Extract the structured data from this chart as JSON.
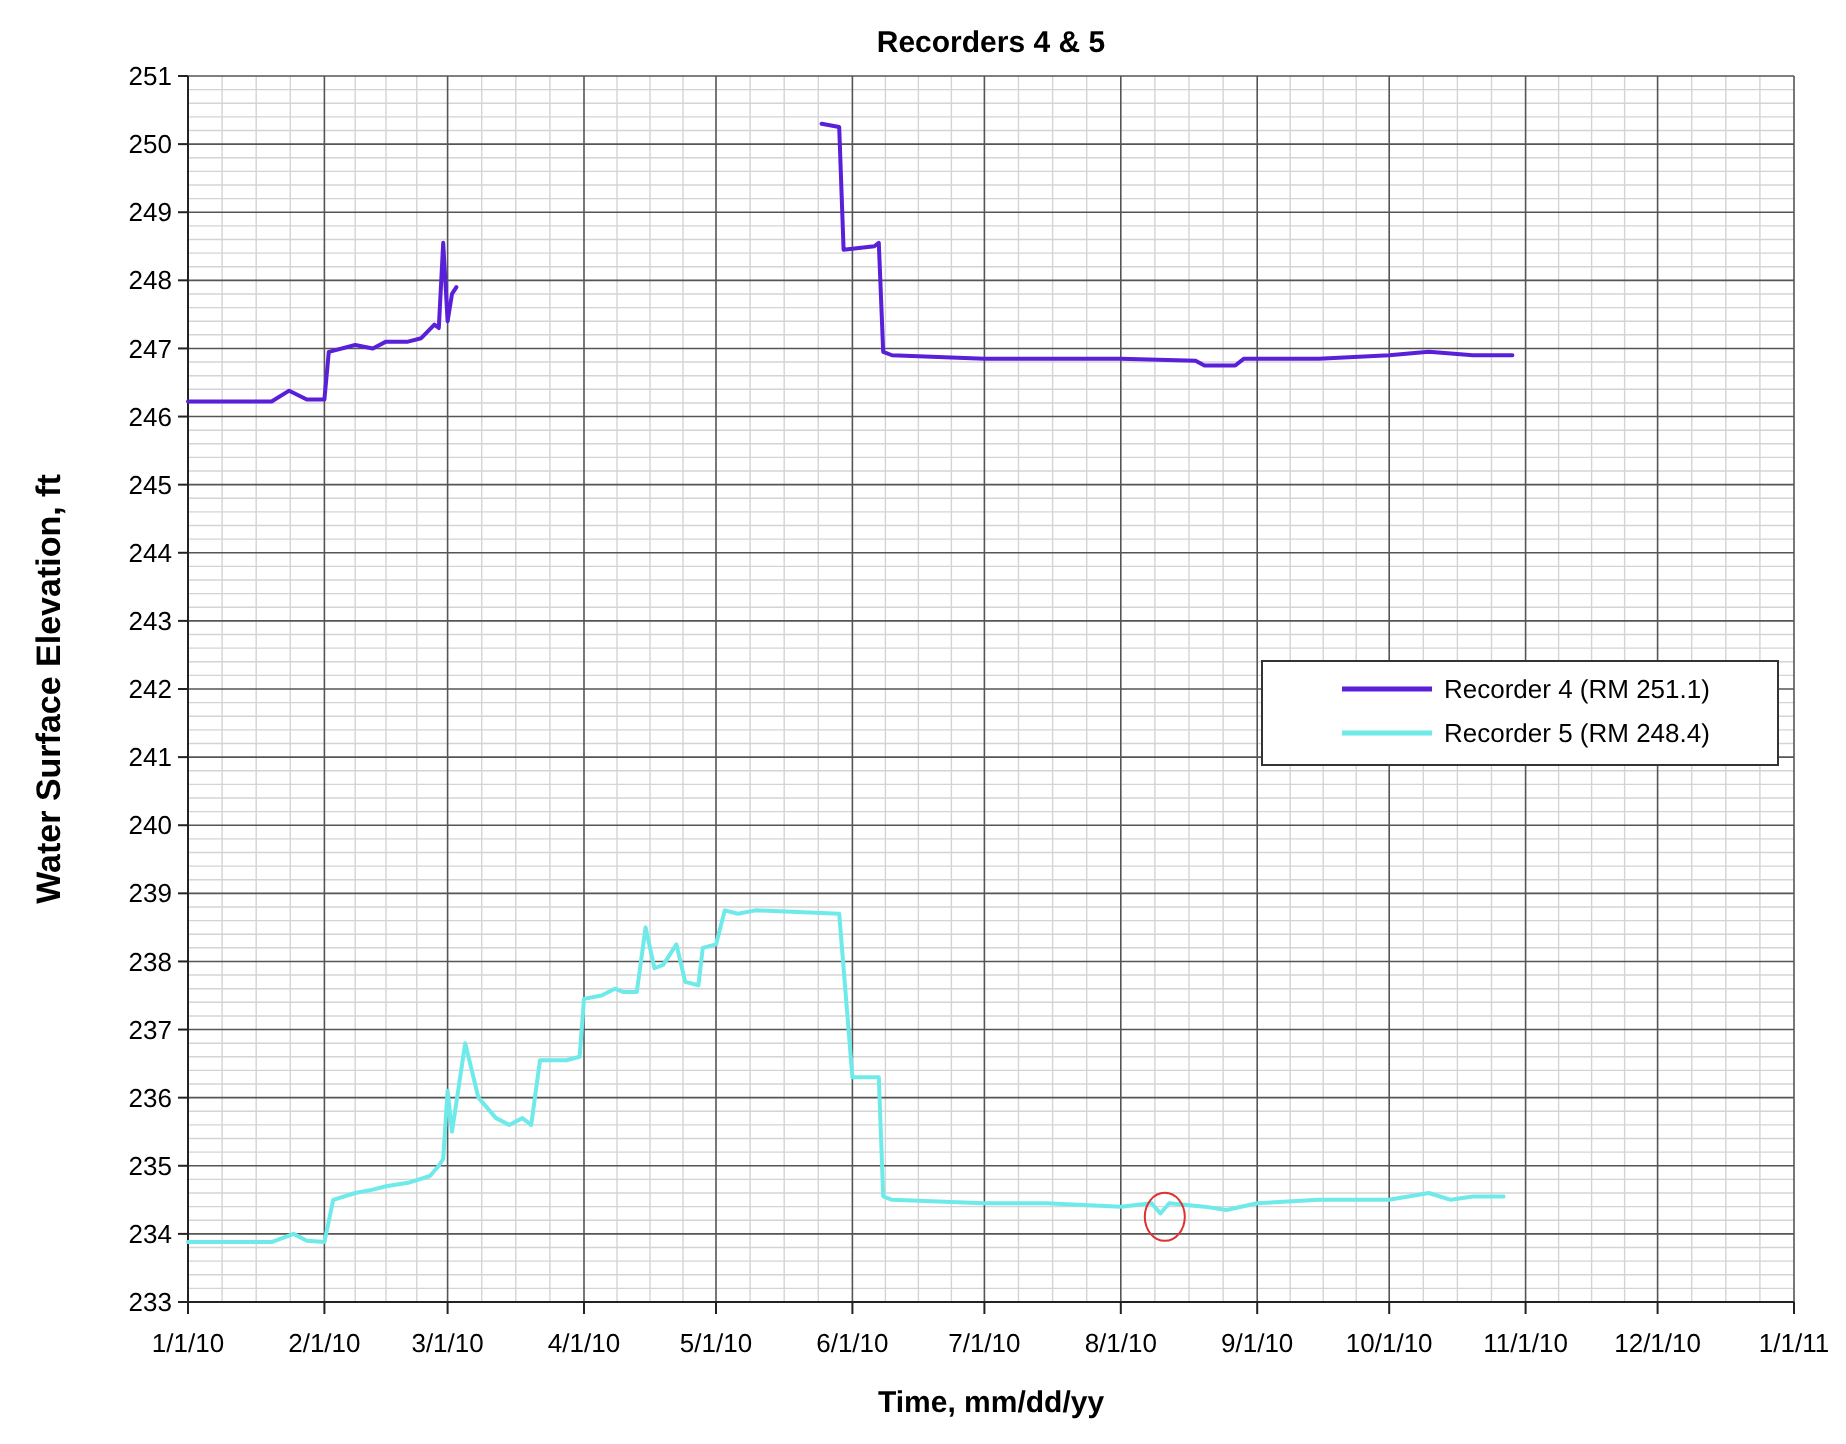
{
  "chart_data": {
    "type": "line",
    "title": "Recorders 4 & 5",
    "xlabel": "Time, mm/dd/yy",
    "ylabel": "Water Surface Elevation, ft",
    "xlim": [
      "2010-01-01",
      "2011-01-01"
    ],
    "xticks": [
      {
        "value": "2010-01-01",
        "label": "1/1/10"
      },
      {
        "value": "2010-02-01",
        "label": "2/1/10"
      },
      {
        "value": "2010-03-01",
        "label": "3/1/10"
      },
      {
        "value": "2010-04-01",
        "label": "4/1/10"
      },
      {
        "value": "2010-05-01",
        "label": "5/1/10"
      },
      {
        "value": "2010-06-01",
        "label": "6/1/10"
      },
      {
        "value": "2010-07-01",
        "label": "7/1/10"
      },
      {
        "value": "2010-08-01",
        "label": "8/1/10"
      },
      {
        "value": "2010-09-01",
        "label": "9/1/10"
      },
      {
        "value": "2010-10-01",
        "label": "10/1/10"
      },
      {
        "value": "2010-11-01",
        "label": "11/1/10"
      },
      {
        "value": "2010-12-01",
        "label": "12/1/10"
      },
      {
        "value": "2011-01-01",
        "label": "1/1/11"
      }
    ],
    "ylim": [
      233,
      251
    ],
    "yticks": [
      233,
      234,
      235,
      236,
      237,
      238,
      239,
      240,
      241,
      242,
      243,
      244,
      245,
      246,
      247,
      248,
      249,
      250,
      251
    ],
    "grid": true,
    "legend": "right",
    "line_style": "solid",
    "marker": "none",
    "series": [
      {
        "name": "Recorder 4 (RM 251.1)",
        "color": "#5a1fd8",
        "x": [
          "2010-01-01",
          "2010-01-10",
          "2010-01-20",
          "2010-01-24",
          "2010-01-28",
          "2010-02-01",
          "2010-02-02",
          "2010-02-08",
          "2010-02-12",
          "2010-02-15",
          "2010-02-20",
          "2010-02-23",
          "2010-02-26",
          "2010-02-27",
          "2010-02-28",
          "2010-03-01",
          "2010-03-02",
          "2010-03-03",
          "2010-04-15",
          "2010-05-25",
          "2010-05-29",
          "2010-05-30",
          "2010-06-06",
          "2010-06-07",
          "2010-06-08",
          "2010-06-10",
          "2010-07-01",
          "2010-08-01",
          "2010-08-18",
          "2010-08-20",
          "2010-08-27",
          "2010-08-29",
          "2010-09-15",
          "2010-10-01",
          "2010-10-10",
          "2010-10-20",
          "2010-10-29"
        ],
        "values": [
          246.22,
          246.22,
          246.22,
          246.38,
          246.25,
          246.25,
          246.95,
          247.05,
          247.0,
          247.1,
          247.1,
          247.15,
          247.35,
          247.3,
          248.55,
          247.4,
          247.8,
          247.9,
          null,
          250.3,
          250.25,
          248.45,
          248.5,
          248.55,
          246.95,
          246.9,
          246.85,
          246.85,
          246.82,
          246.75,
          246.75,
          246.85,
          246.85,
          246.9,
          246.95,
          246.9,
          246.9
        ]
      },
      {
        "name": "Recorder 5 (RM 248.4)",
        "color": "#6eeaea",
        "x": [
          "2010-01-01",
          "2010-01-10",
          "2010-01-20",
          "2010-01-25",
          "2010-01-28",
          "2010-02-01",
          "2010-02-03",
          "2010-02-08",
          "2010-02-12",
          "2010-02-15",
          "2010-02-20",
          "2010-02-25",
          "2010-02-27",
          "2010-02-28",
          "2010-03-01",
          "2010-03-02",
          "2010-03-05",
          "2010-03-08",
          "2010-03-12",
          "2010-03-15",
          "2010-03-18",
          "2010-03-20",
          "2010-03-22",
          "2010-03-28",
          "2010-03-31",
          "2010-04-01",
          "2010-04-05",
          "2010-04-08",
          "2010-04-10",
          "2010-04-13",
          "2010-04-15",
          "2010-04-17",
          "2010-04-19",
          "2010-04-22",
          "2010-04-24",
          "2010-04-27",
          "2010-04-28",
          "2010-05-01",
          "2010-05-03",
          "2010-05-06",
          "2010-05-10",
          "2010-05-29",
          "2010-06-01",
          "2010-06-07",
          "2010-06-08",
          "2010-06-10",
          "2010-07-01",
          "2010-07-15",
          "2010-08-01",
          "2010-08-08",
          "2010-08-10",
          "2010-08-12",
          "2010-08-20",
          "2010-08-25",
          "2010-09-01",
          "2010-09-15",
          "2010-10-01",
          "2010-10-10",
          "2010-10-15",
          "2010-10-20",
          "2010-10-27"
        ],
        "values": [
          233.88,
          233.88,
          233.88,
          234.0,
          233.9,
          233.88,
          234.5,
          234.6,
          234.65,
          234.7,
          234.75,
          234.85,
          235.0,
          235.1,
          236.1,
          235.5,
          236.8,
          236.0,
          235.7,
          235.6,
          235.7,
          235.6,
          236.55,
          236.55,
          236.6,
          237.45,
          237.5,
          237.6,
          237.55,
          237.55,
          238.5,
          237.9,
          237.95,
          238.25,
          237.7,
          237.65,
          238.2,
          238.25,
          238.75,
          238.7,
          238.75,
          238.7,
          236.3,
          236.3,
          234.55,
          234.5,
          234.45,
          234.45,
          234.4,
          234.45,
          234.3,
          234.45,
          234.4,
          234.35,
          234.45,
          234.5,
          234.5,
          234.6,
          234.5,
          234.55,
          234.55
        ]
      }
    ]
  }
}
